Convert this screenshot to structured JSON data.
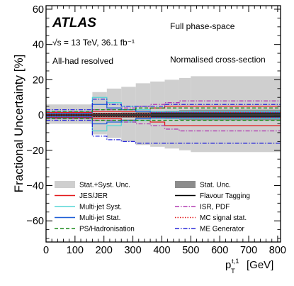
{
  "chart_data": {
    "type": "line",
    "experiment": "ATLAS",
    "energy_lumi": "√s = 13 TeV, 36.1 fb⁻¹",
    "selection": "All-had resolved",
    "phase_space": "Full phase-space",
    "observable": "Normalised cross-section",
    "ylabel": "Fractional Uncertainty [%]",
    "xlabel_main": "p",
    "xlabel_sub": "T",
    "xlabel_sup": "t,1",
    "xlabel_unit": "[GeV]",
    "xlim": [
      0,
      810
    ],
    "ylim": [
      -72,
      62
    ],
    "xticks": [
      0,
      100,
      200,
      300,
      400,
      500,
      600,
      700,
      800
    ],
    "yticks": [
      -60,
      -40,
      -20,
      0,
      20,
      40,
      60
    ],
    "bin_edges": [
      0,
      60,
      110,
      160,
      210,
      260,
      310,
      360,
      410,
      460,
      500,
      810
    ],
    "series": [
      {
        "name": "Stat.+Syst. Unc.",
        "key": "total",
        "style": "band",
        "color": "#cfcfcf",
        "up": [
          6,
          6,
          6,
          13,
          15,
          16,
          18,
          19,
          20,
          21,
          22
        ],
        "down": [
          -5,
          -5,
          -5,
          -11,
          -13,
          -15,
          -17,
          -18,
          -19,
          -20,
          -21
        ]
      },
      {
        "name": "Stat. Unc.",
        "key": "stat",
        "style": "band",
        "color": "#8c8c8c",
        "up": [
          0.6,
          0.7,
          0.8,
          1.0,
          1.2,
          1.4,
          1.7,
          2.0,
          2.4,
          2.8,
          3.0
        ],
        "down": [
          -0.6,
          -0.7,
          -0.8,
          -1.0,
          -1.2,
          -1.4,
          -1.7,
          -2.0,
          -2.4,
          -2.8,
          -3.0
        ]
      },
      {
        "name": "JES/JER",
        "key": "jes",
        "style": "solid",
        "color": "#e31a1c",
        "up": [
          1.5,
          1.5,
          1.5,
          2,
          2,
          2,
          3,
          4,
          5,
          5,
          5
        ],
        "down": [
          -1.5,
          -1.5,
          -1.5,
          -2,
          -2,
          -3,
          -3,
          -4,
          -6,
          -6,
          -6
        ]
      },
      {
        "name": "Flavour Tagging",
        "key": "ftag",
        "style": "solid",
        "color": "#000000",
        "up": [
          1,
          1,
          1,
          1,
          1,
          1,
          1,
          1,
          1,
          1,
          1
        ],
        "down": [
          -1,
          -1,
          -1,
          -1,
          -1,
          -1,
          -1,
          -1,
          -1,
          -1,
          -1
        ]
      },
      {
        "name": "Multi-jet Syst.",
        "key": "mjsyst",
        "style": "solid",
        "color": "#55d6d6",
        "up": [
          2,
          2,
          2,
          10,
          7,
          5,
          3,
          2,
          2,
          2,
          2
        ],
        "down": [
          -2,
          -2,
          -2,
          -9,
          -6,
          -4,
          -3,
          -2,
          -2,
          -2,
          -2
        ]
      },
      {
        "name": "ISR, PDF",
        "key": "isr",
        "style": "dashdot",
        "color": "#b03ab0",
        "up": [
          2,
          2,
          2,
          3,
          3,
          4,
          5,
          6,
          7,
          8,
          8
        ],
        "down": [
          -2,
          -2,
          -2,
          -3,
          -3,
          -4,
          -5,
          -6,
          -8,
          -9,
          -9
        ]
      },
      {
        "name": "Multi-jet Stat.",
        "key": "mjstat",
        "style": "solid",
        "color": "#1f5fd6",
        "up": [
          1,
          1,
          1,
          6,
          4,
          3,
          2,
          1.5,
          1.5,
          1.5,
          1.5
        ],
        "down": [
          -1,
          -1,
          -1,
          -5,
          -4,
          -3,
          -2,
          -1.5,
          -1.5,
          -1.5,
          -1.5
        ]
      },
      {
        "name": "MC signal stat.",
        "key": "mcstat",
        "style": "dotted",
        "color": "#e31a1c",
        "up": [
          0.5,
          0.5,
          0.5,
          1,
          1,
          1,
          1,
          1.5,
          1.5,
          1.5,
          1.5
        ],
        "down": [
          -0.5,
          -0.5,
          -0.5,
          -1,
          -1,
          -1,
          -1,
          -1.5,
          -1.5,
          -1.5,
          -1.5
        ]
      },
      {
        "name": "PS/Hadronisation",
        "key": "ps",
        "style": "dashed",
        "color": "#1a8a1a",
        "up": [
          2,
          2,
          2,
          3,
          3,
          3,
          4,
          4,
          4,
          4,
          4
        ],
        "down": [
          -2,
          -2,
          -2,
          -3,
          -3,
          -3,
          -3,
          -3,
          -3,
          -3,
          -3
        ]
      },
      {
        "name": "ME Generator",
        "key": "me",
        "style": "dashdot",
        "color": "#2a2ad8",
        "up": [
          3,
          3,
          3,
          9,
          6,
          5,
          5,
          5,
          6,
          6,
          6
        ],
        "down": [
          -3,
          -3,
          -3,
          -12,
          -14,
          -15,
          -16,
          -16,
          -16,
          -16,
          -16
        ]
      }
    ],
    "legend_left": [
      "total",
      "jes",
      "mjsyst",
      "mjstat",
      "ps"
    ],
    "legend_right": [
      "stat",
      "ftag",
      "isr",
      "mcstat",
      "me"
    ],
    "grid": false,
    "legend_position": "bottom"
  }
}
